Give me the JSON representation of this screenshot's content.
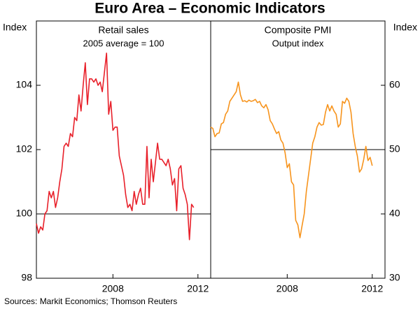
{
  "title": "Euro Area – Economic Indicators",
  "source": "Sources: Markit Economics; Thomson Reuters",
  "chart_data": [
    {
      "type": "line",
      "title": "Retail sales",
      "subtitle": "2005 average = 100",
      "ylabel": "Index",
      "yaxis_side": "left",
      "xlim": [
        2004.4,
        2012.6
      ],
      "xticks": [
        2008,
        2012
      ],
      "ylim": [
        98,
        106
      ],
      "yticks": [
        98,
        100,
        102,
        104
      ],
      "hline": 100,
      "x": [
        2004.4,
        2004.5,
        2004.6,
        2004.7,
        2004.8,
        2004.9,
        2005.0,
        2005.1,
        2005.2,
        2005.3,
        2005.4,
        2005.5,
        2005.6,
        2005.7,
        2005.8,
        2005.9,
        2006.0,
        2006.1,
        2006.2,
        2006.3,
        2006.4,
        2006.5,
        2006.6,
        2006.7,
        2006.8,
        2006.9,
        2007.0,
        2007.1,
        2007.2,
        2007.3,
        2007.4,
        2007.5,
        2007.6,
        2007.7,
        2007.8,
        2007.9,
        2008.0,
        2008.1,
        2008.2,
        2008.3,
        2008.4,
        2008.5,
        2008.6,
        2008.7,
        2008.8,
        2008.9,
        2009.0,
        2009.1,
        2009.2,
        2009.3,
        2009.4,
        2009.5,
        2009.6,
        2009.7,
        2009.8,
        2009.9,
        2010.0,
        2010.1,
        2010.2,
        2010.3,
        2010.4,
        2010.5,
        2010.6,
        2010.7,
        2010.8,
        2010.9,
        2011.0,
        2011.1,
        2011.2,
        2011.3,
        2011.4,
        2011.5,
        2011.6,
        2011.7,
        2011.8
      ],
      "series": [
        {
          "name": "Retail sales",
          "color": "#e8202a",
          "values": [
            99.7,
            99.4,
            99.6,
            99.5,
            100.0,
            100.1,
            100.7,
            100.5,
            100.7,
            100.2,
            100.5,
            101.0,
            101.4,
            102.1,
            102.2,
            102.1,
            102.5,
            102.4,
            103.0,
            102.9,
            103.7,
            103.2,
            104.0,
            104.7,
            103.4,
            104.2,
            104.2,
            104.1,
            104.2,
            104.0,
            104.1,
            103.8,
            104.4,
            105.0,
            103.1,
            103.5,
            102.6,
            102.7,
            102.7,
            101.8,
            101.5,
            101.2,
            100.6,
            100.2,
            100.3,
            100.1,
            100.7,
            100.3,
            100.6,
            100.8,
            100.3,
            100.3,
            102.1,
            100.5,
            101.7,
            101.0,
            101.6,
            102.2,
            101.7,
            101.7,
            101.6,
            101.5,
            101.7,
            101.4,
            100.9,
            101.1,
            100.1,
            101.4,
            101.5,
            100.8,
            100.6,
            100.3,
            99.2,
            100.3,
            100.2
          ]
        }
      ]
    },
    {
      "type": "line",
      "title": "Composite PMI",
      "subtitle": "Output index",
      "ylabel": "Index",
      "yaxis_side": "right",
      "xlim": [
        2004.4,
        2012.6
      ],
      "xticks": [
        2008,
        2012
      ],
      "ylim": [
        30,
        70
      ],
      "yticks": [
        30,
        40,
        50,
        60
      ],
      "hline": 50,
      "x": [
        2004.4,
        2004.5,
        2004.6,
        2004.7,
        2004.8,
        2004.9,
        2005.0,
        2005.1,
        2005.2,
        2005.3,
        2005.4,
        2005.5,
        2005.6,
        2005.7,
        2005.8,
        2005.9,
        2006.0,
        2006.1,
        2006.2,
        2006.3,
        2006.4,
        2006.5,
        2006.6,
        2006.7,
        2006.8,
        2006.9,
        2007.0,
        2007.1,
        2007.2,
        2007.3,
        2007.4,
        2007.5,
        2007.6,
        2007.7,
        2007.8,
        2007.9,
        2008.0,
        2008.1,
        2008.2,
        2008.3,
        2008.4,
        2008.5,
        2008.6,
        2008.7,
        2008.8,
        2008.9,
        2009.0,
        2009.1,
        2009.2,
        2009.3,
        2009.4,
        2009.5,
        2009.6,
        2009.7,
        2009.8,
        2009.9,
        2010.0,
        2010.1,
        2010.2,
        2010.3,
        2010.4,
        2010.5,
        2010.6,
        2010.7,
        2010.8,
        2010.9,
        2011.0,
        2011.1,
        2011.2,
        2011.3,
        2011.4,
        2011.5,
        2011.6,
        2011.7,
        2011.8,
        2011.9,
        2012.0
      ],
      "series": [
        {
          "name": "Composite PMI",
          "color": "#f7941d",
          "values": [
            53.5,
            53.3,
            52.0,
            52.5,
            52.6,
            54.0,
            54.2,
            55.5,
            56.0,
            57.5,
            58.0,
            58.5,
            59.0,
            60.5,
            58.5,
            57.5,
            57.6,
            57.4,
            57.7,
            57.5,
            57.6,
            57.8,
            57.3,
            57.5,
            56.8,
            56.5,
            57.0,
            56.2,
            54.5,
            54.0,
            53.2,
            52.5,
            52.8,
            51.5,
            51.0,
            49.5,
            47.2,
            47.8,
            45.0,
            44.5,
            39.0,
            38.3,
            36.3,
            38.2,
            40.0,
            43.5,
            46.0,
            48.5,
            51.0,
            52.0,
            53.5,
            54.2,
            53.8,
            53.9,
            55.8,
            57.0,
            56.0,
            56.8,
            56.0,
            55.5,
            53.5,
            54.0,
            57.5,
            57.2,
            58.0,
            57.5,
            55.8,
            52.5,
            50.5,
            49.0,
            46.5,
            47.0,
            48.5,
            50.5,
            48.3,
            48.8,
            47.5
          ]
        }
      ]
    }
  ]
}
